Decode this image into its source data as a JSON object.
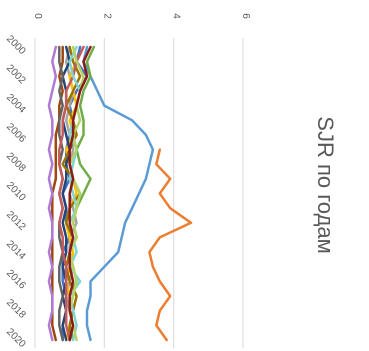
{
  "chart_data": {
    "type": "line",
    "title": "SJR по годам",
    "xlabel": "",
    "ylabel": "",
    "x": [
      "2000",
      "2001",
      "2002",
      "2003",
      "2004",
      "2005",
      "2006",
      "2007",
      "2008",
      "2009",
      "2010",
      "2011",
      "2012",
      "2013",
      "2014",
      "2015",
      "2016",
      "2017",
      "2018",
      "2019",
      "2020"
    ],
    "x_tick_labels": [
      "2000",
      "2002",
      "2004",
      "2006",
      "2008",
      "2010",
      "2012",
      "2014",
      "2016",
      "2018",
      "2020"
    ],
    "ylim": [
      0,
      6
    ],
    "y_ticks": [
      0,
      2,
      4,
      6
    ],
    "grid": true,
    "legend": "none",
    "orientation": "rotated-90-clockwise",
    "series": [
      {
        "color": "#4472c4",
        "values": [
          1.3,
          1.2,
          1.5,
          1.2,
          1.0,
          1.1,
          1.0,
          0.9,
          0.9,
          1.0,
          0.8,
          0.9,
          0.9,
          1.0,
          0.8,
          0.8,
          0.8,
          0.9,
          0.9,
          0.8,
          0.8
        ]
      },
      {
        "color": "#ed7d31",
        "values": [
          null,
          null,
          null,
          null,
          null,
          null,
          null,
          3.6,
          3.5,
          3.9,
          3.6,
          3.9,
          4.5,
          3.6,
          3.3,
          3.4,
          3.6,
          3.9,
          3.6,
          3.5,
          3.8
        ]
      },
      {
        "color": "#a5a5a5",
        "values": [
          1.0,
          0.9,
          1.0,
          1.1,
          1.0,
          0.9,
          1.0,
          1.1,
          1.0,
          1.1,
          1.0,
          1.1,
          1.2,
          1.0,
          1.0,
          1.1,
          1.0,
          0.9,
          1.0,
          1.1,
          1.0
        ]
      },
      {
        "color": "#ffc000",
        "values": [
          1.1,
          1.2,
          1.0,
          1.1,
          1.2,
          1.0,
          1.1,
          0.9,
          1.0,
          1.1,
          1.2,
          1.0,
          0.9,
          1.0,
          1.1,
          1.0,
          0.9,
          1.0,
          1.1,
          1.0,
          0.9
        ]
      },
      {
        "color": "#5b9bd5",
        "values": [
          1.5,
          1.4,
          1.6,
          1.8,
          2.0,
          2.8,
          3.2,
          3.4,
          3.3,
          3.2,
          3.0,
          2.8,
          2.6,
          2.5,
          2.4,
          2.0,
          1.6,
          1.6,
          1.5,
          1.5,
          1.6
        ]
      },
      {
        "color": "#70ad47",
        "values": [
          1.7,
          1.5,
          1.6,
          1.4,
          1.3,
          1.4,
          1.4,
          1.2,
          1.3,
          1.6,
          1.4,
          1.2,
          1.1,
          1.2,
          1.0,
          1.1,
          1.2,
          1.0,
          1.1,
          1.0,
          1.1
        ]
      },
      {
        "color": "#264478",
        "values": [
          0.9,
          1.0,
          0.8,
          0.9,
          0.9,
          0.8,
          0.9,
          1.0,
          0.9,
          0.9,
          0.8,
          0.9,
          0.8,
          0.9,
          0.9,
          0.8,
          0.9,
          0.8,
          0.9,
          0.8,
          0.9
        ]
      },
      {
        "color": "#9e480e",
        "values": [
          0.8,
          0.8,
          0.7,
          0.8,
          0.7,
          0.7,
          0.6,
          0.6,
          0.6,
          0.6,
          0.5,
          0.5,
          0.5,
          0.5,
          0.5,
          0.5,
          0.5,
          0.5,
          0.5,
          0.5,
          0.6
        ]
      },
      {
        "color": "#636363",
        "values": [
          0.7,
          0.7,
          0.8,
          0.7,
          0.8,
          0.7,
          0.7,
          0.8,
          0.7,
          0.8,
          0.7,
          0.8,
          0.7,
          0.7,
          0.8,
          0.7,
          0.7,
          0.8,
          0.7,
          0.7,
          0.8
        ]
      },
      {
        "color": "#997300",
        "values": [
          1.0,
          1.1,
          1.3,
          1.1,
          0.9,
          1.1,
          1.2,
          1.0,
          0.8,
          1.1,
          1.3,
          1.0,
          0.9,
          1.1,
          1.0,
          0.9,
          1.0,
          1.2,
          1.1,
          1.0,
          1.0
        ]
      },
      {
        "color": "#c55a5a",
        "values": [
          1.4,
          1.2,
          1.1,
          0.9,
          0.9,
          0.8,
          0.8,
          0.7,
          0.7,
          0.8,
          0.7,
          0.8,
          0.7,
          0.8,
          0.8,
          0.9,
          0.9,
          0.9,
          0.9,
          0.9,
          1.0
        ]
      },
      {
        "color": "#ad7ad6",
        "values": [
          0.6,
          0.5,
          0.6,
          0.5,
          0.4,
          0.5,
          0.5,
          0.4,
          0.5,
          0.4,
          0.5,
          0.4,
          0.5,
          0.5,
          0.4,
          0.5,
          0.4,
          0.5,
          0.5,
          0.4,
          0.5
        ]
      },
      {
        "color": "#7fd6d0",
        "values": [
          1.2,
          1.0,
          1.1,
          1.3,
          1.2,
          1.1,
          1.0,
          1.2,
          1.1,
          1.0,
          1.1,
          1.2,
          1.0,
          1.1,
          1.2,
          1.0,
          1.3,
          1.0,
          1.1,
          1.2,
          1.1
        ]
      },
      {
        "color": "#b5d36a",
        "values": [
          1.1,
          1.2,
          1.4,
          1.3,
          1.2,
          1.3,
          1.1,
          1.2,
          1.0,
          1.1,
          1.3,
          1.2,
          1.1,
          1.2,
          1.0,
          1.1,
          1.2,
          1.1,
          1.0,
          1.1,
          1.2
        ]
      },
      {
        "color": "#8b1a1a",
        "values": [
          1.6,
          1.4,
          1.5,
          1.3,
          1.2,
          1.1,
          1.1,
          1.0,
          1.0,
          1.1,
          1.0,
          1.0,
          1.0,
          1.1,
          1.0,
          1.0,
          1.1,
          1.0,
          1.0,
          1.1,
          1.0
        ]
      }
    ]
  }
}
